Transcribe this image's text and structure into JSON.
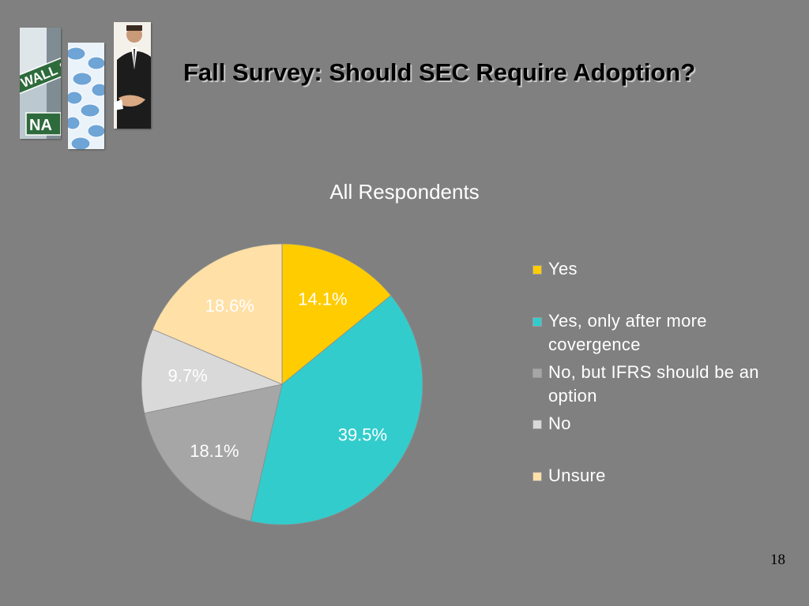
{
  "slide": {
    "title": "Fall Survey:  Should SEC Require Adoption?",
    "number": "18"
  },
  "images": {
    "street": {
      "sign_top": "WALL ST",
      "sign_bottom": "NA"
    },
    "calculator": {
      "icon": "calculator-buttons"
    },
    "handshake": {
      "icon": "handshake-businessman"
    }
  },
  "chart_data": {
    "type": "pie",
    "title": "All Respondents",
    "legend_position": "right",
    "categories": [
      "Yes",
      "Yes, only after more covergence",
      "No, but IFRS should be an option",
      "No",
      "Unsure"
    ],
    "values": [
      14.1,
      39.5,
      18.1,
      9.7,
      18.6
    ],
    "labels": [
      "14.1%",
      "39.5%",
      "18.1%",
      "9.7%",
      "18.6%"
    ],
    "colors": [
      "#ffcc00",
      "#33cccc",
      "#a6a6a6",
      "#d9d9d9",
      "#ffe0a6"
    ],
    "label_colors": [
      "#ffffff",
      "#ffffff",
      "#ffffff",
      "#ffffff",
      "#ffffff"
    ]
  }
}
